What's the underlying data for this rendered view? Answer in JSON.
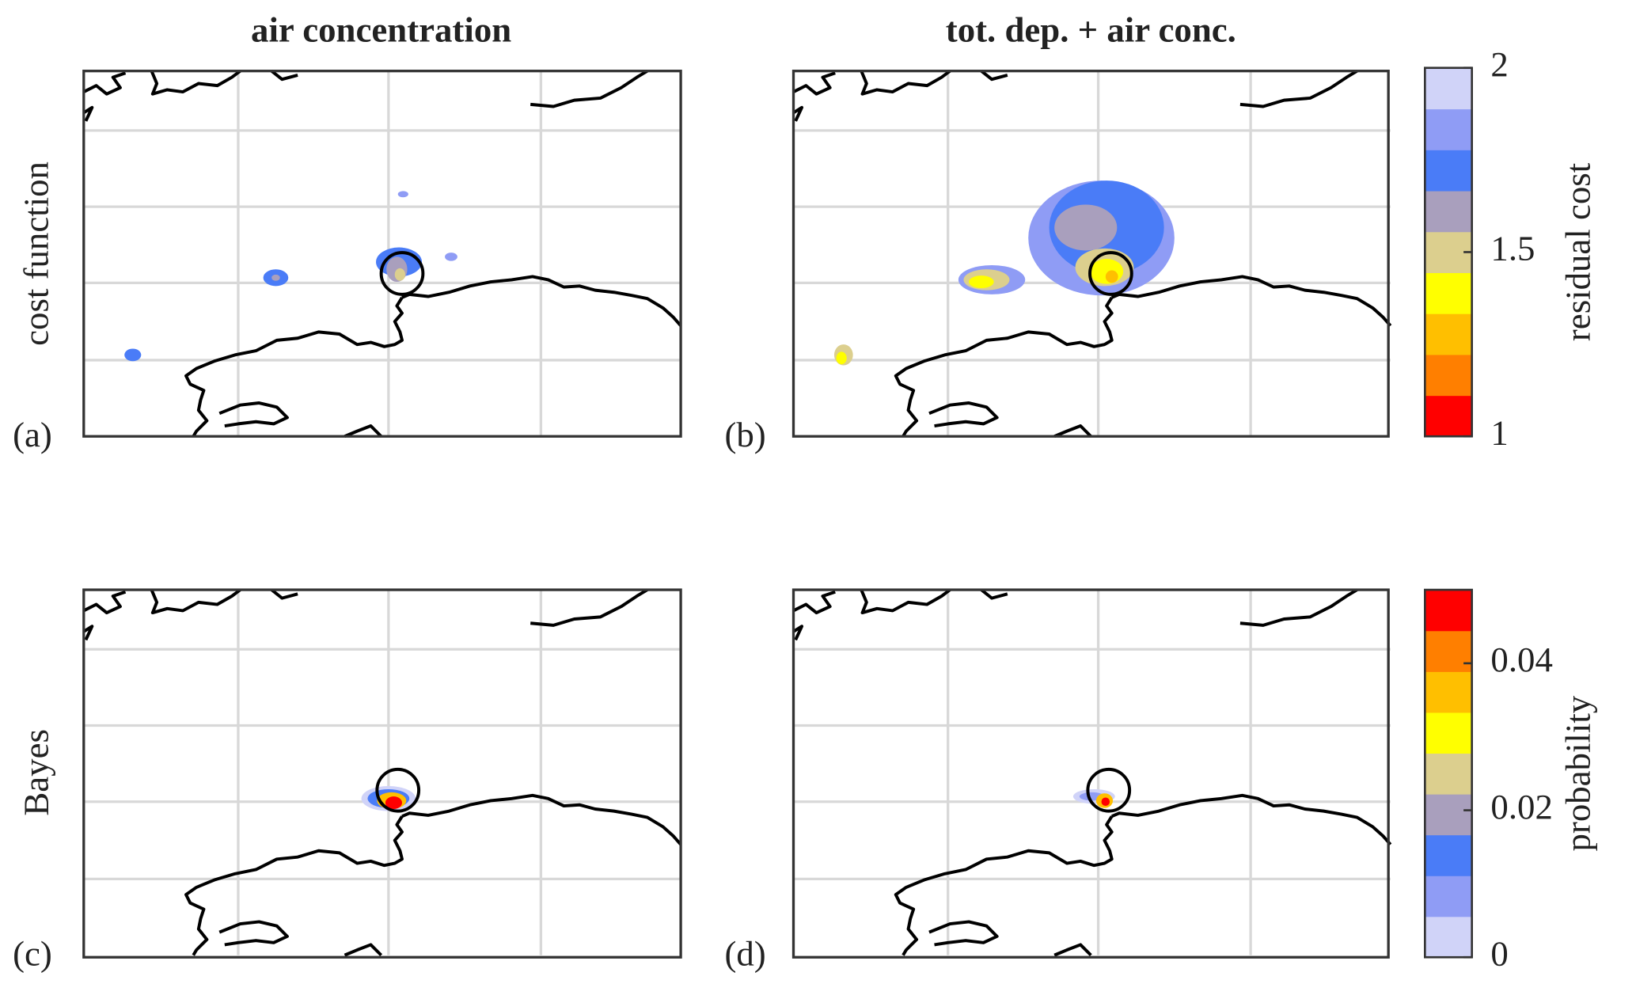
{
  "titles": [
    "air concentration",
    "tot. dep. + air conc."
  ],
  "row_labels": [
    "cost function",
    "Bayes"
  ],
  "panel_labels": [
    "(a)",
    "(b)",
    "(c)",
    "(d)"
  ],
  "colorbars": [
    {
      "label": "residual cost",
      "clim": [
        1,
        2
      ],
      "ticks": [
        1,
        1.5,
        2
      ],
      "colors": [
        "#ff0000",
        "#ff7f00",
        "#ffbf00",
        "#ffff00",
        "#dccf8e",
        "#a99fbd",
        "#4a7cf7",
        "#8f9cf5",
        "#d0d3f8"
      ]
    },
    {
      "label": "probability",
      "clim": [
        0,
        0.05
      ],
      "ticks": [
        0,
        0.02,
        0.04
      ],
      "colors": [
        "#d0d3f8",
        "#8f9cf5",
        "#4a7cf7",
        "#a99fbd",
        "#dccf8e",
        "#ffff00",
        "#ffbf00",
        "#ff7f00",
        "#ff0000"
      ]
    }
  ]
}
